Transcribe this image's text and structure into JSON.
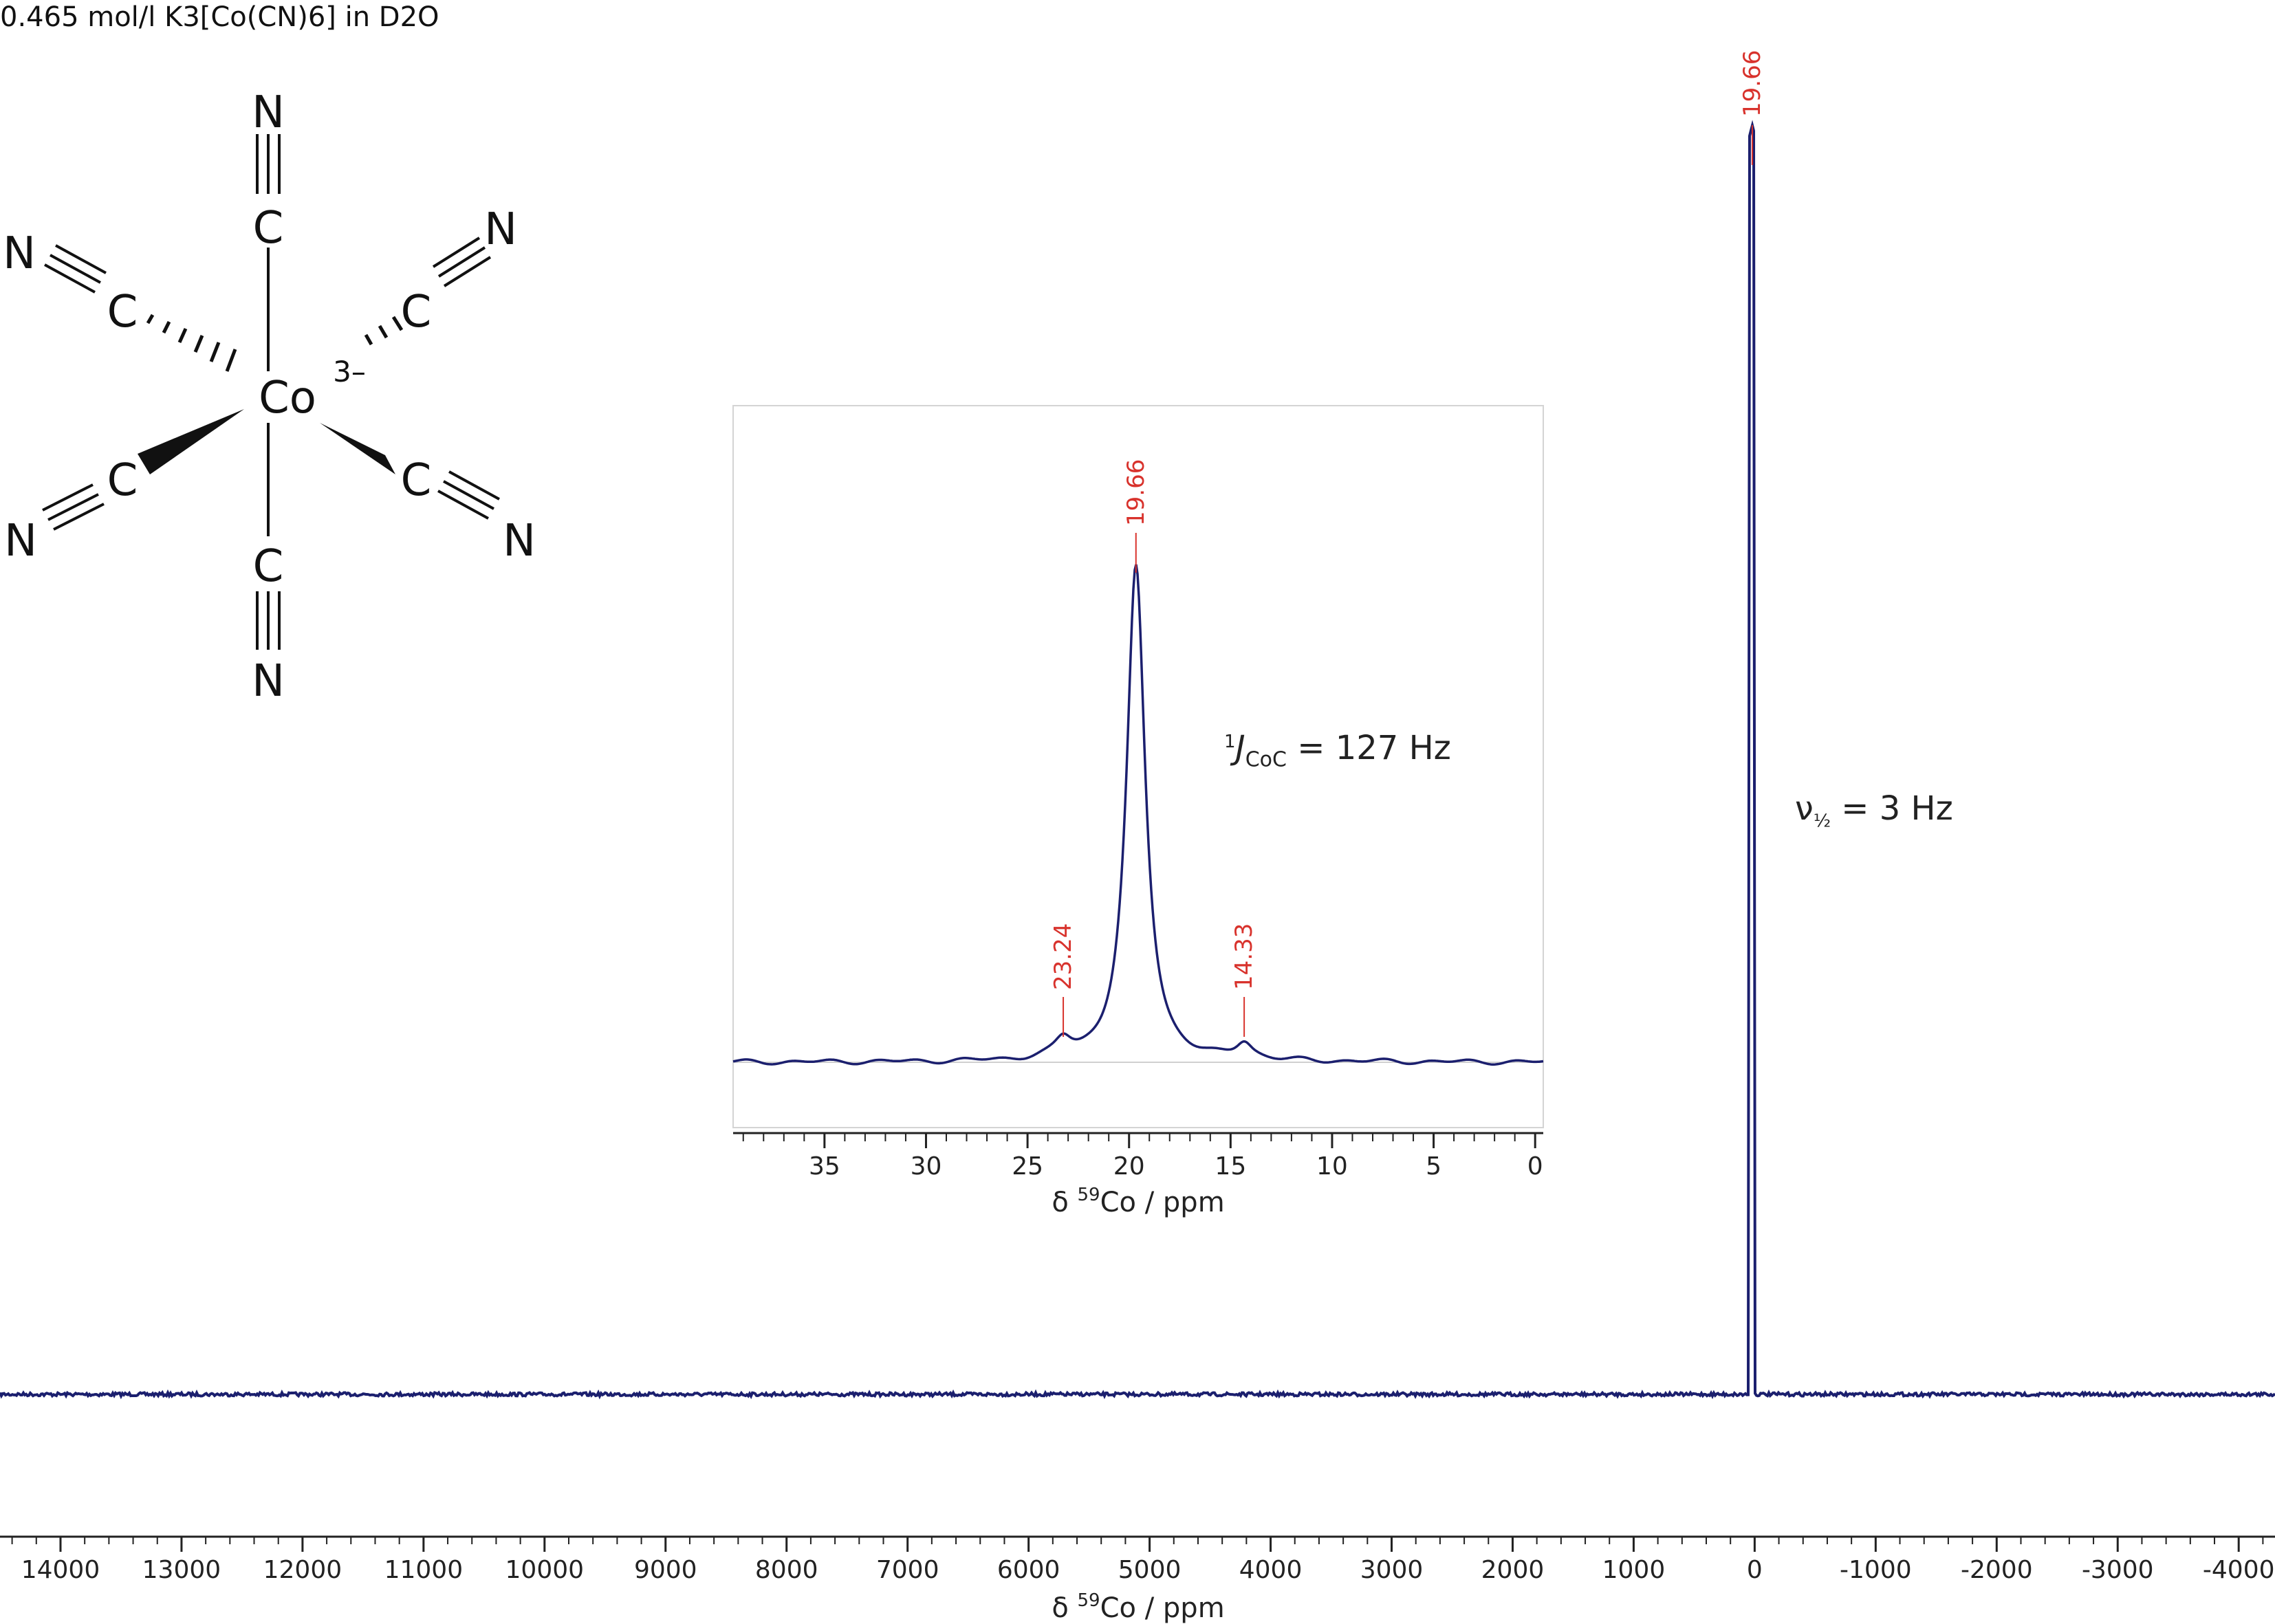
{
  "chart_data": [
    {
      "type": "line",
      "id": "main",
      "title": "0.465 mol/l K3[Co(CN)6] in D2O",
      "xlabel": "δ 59Co / ppm",
      "xlabel_parts": {
        "prefix": "δ ",
        "sup": "59",
        "rest": "Co / ppm"
      },
      "xlim": [
        14500,
        -4300
      ],
      "ticks": [
        14000,
        13000,
        12000,
        11000,
        10000,
        9000,
        8000,
        7000,
        6000,
        5000,
        4000,
        3000,
        2000,
        1000,
        0,
        -1000,
        -2000,
        -3000,
        -4000
      ],
      "minor_step": 200,
      "peaks": [
        {
          "x": 19.66,
          "label": "19.66"
        }
      ],
      "annotation": {
        "prefix": "ν",
        "sub": "½",
        "text": " = 3 Hz"
      }
    },
    {
      "type": "line",
      "id": "inset",
      "xlabel": "δ 59Co / ppm",
      "xlabel_parts": {
        "prefix": "δ ",
        "sup": "59",
        "rest": "Co / ppm"
      },
      "xlim": [
        39.5,
        -0.4
      ],
      "ticks": [
        35,
        30,
        25,
        20,
        15,
        10,
        5,
        0
      ],
      "minor_step": 1,
      "peaks": [
        {
          "x": 23.24,
          "label": "23.24"
        },
        {
          "x": 19.66,
          "label": "19.66"
        },
        {
          "x": 14.33,
          "label": "14.33"
        }
      ],
      "annotation": {
        "sup": "1",
        "italic": "J",
        "sub": "CoC",
        "text": " = 127 Hz"
      }
    }
  ],
  "structure": {
    "center_atom": "Co",
    "charge": "3–",
    "carbon": "C",
    "nitrogen": "N"
  },
  "colors": {
    "line": "#1b1f6e",
    "peak_label": "#d8322c",
    "axis": "#222222",
    "inset_border": "#cfcfcf"
  }
}
